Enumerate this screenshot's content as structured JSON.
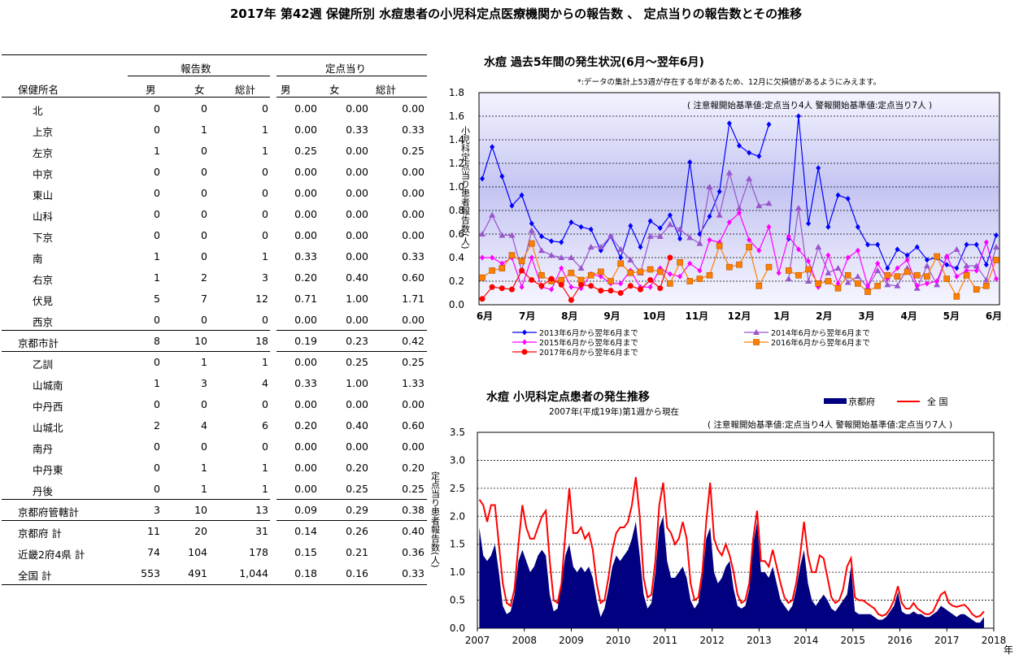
{
  "title": "2017年 第42週 保健所別 水痘患者の小児科定点医療機関からの報告数 、 定点当りの報告数とその推移",
  "table": {
    "group_headers": [
      "報告数",
      "定点当り"
    ],
    "columns": [
      "保健所名",
      "男",
      "女",
      "総計",
      "男",
      "女",
      "総計"
    ],
    "rows": [
      {
        "name": "北",
        "indent": true,
        "values": [
          "0",
          "0",
          "0",
          "0.00",
          "0.00",
          "0.00"
        ]
      },
      {
        "name": "上京",
        "indent": true,
        "values": [
          "0",
          "1",
          "1",
          "0.00",
          "0.33",
          "0.33"
        ]
      },
      {
        "name": "左京",
        "indent": true,
        "values": [
          "1",
          "0",
          "1",
          "0.25",
          "0.00",
          "0.25"
        ]
      },
      {
        "name": "中京",
        "indent": true,
        "values": [
          "0",
          "0",
          "0",
          "0.00",
          "0.00",
          "0.00"
        ]
      },
      {
        "name": "東山",
        "indent": true,
        "values": [
          "0",
          "0",
          "0",
          "0.00",
          "0.00",
          "0.00"
        ]
      },
      {
        "name": "山科",
        "indent": true,
        "values": [
          "0",
          "0",
          "0",
          "0.00",
          "0.00",
          "0.00"
        ]
      },
      {
        "name": "下京",
        "indent": true,
        "values": [
          "0",
          "0",
          "0",
          "0.00",
          "0.00",
          "0.00"
        ]
      },
      {
        "name": "南",
        "indent": true,
        "values": [
          "1",
          "0",
          "1",
          "0.33",
          "0.00",
          "0.33"
        ]
      },
      {
        "name": "右京",
        "indent": true,
        "values": [
          "1",
          "2",
          "3",
          "0.20",
          "0.40",
          "0.60"
        ]
      },
      {
        "name": "伏見",
        "indent": true,
        "values": [
          "5",
          "7",
          "12",
          "0.71",
          "1.00",
          "1.71"
        ]
      },
      {
        "name": "西京",
        "indent": true,
        "values": [
          "0",
          "0",
          "0",
          "0.00",
          "0.00",
          "0.00"
        ]
      },
      {
        "name": "京都市計",
        "indent": false,
        "rule": true,
        "values": [
          "8",
          "10",
          "18",
          "0.19",
          "0.23",
          "0.42"
        ]
      },
      {
        "name": "乙訓",
        "indent": true,
        "rule": true,
        "values": [
          "0",
          "1",
          "1",
          "0.00",
          "0.25",
          "0.25"
        ]
      },
      {
        "name": "山城南",
        "indent": true,
        "values": [
          "1",
          "3",
          "4",
          "0.33",
          "1.00",
          "1.33"
        ]
      },
      {
        "name": "中丹西",
        "indent": true,
        "values": [
          "0",
          "0",
          "0",
          "0.00",
          "0.00",
          "0.00"
        ]
      },
      {
        "name": "山城北",
        "indent": true,
        "values": [
          "2",
          "4",
          "6",
          "0.20",
          "0.40",
          "0.60"
        ]
      },
      {
        "name": "南丹",
        "indent": true,
        "values": [
          "0",
          "0",
          "0",
          "0.00",
          "0.00",
          "0.00"
        ]
      },
      {
        "name": "中丹東",
        "indent": true,
        "values": [
          "0",
          "1",
          "1",
          "0.00",
          "0.20",
          "0.20"
        ]
      },
      {
        "name": "丹後",
        "indent": true,
        "values": [
          "0",
          "1",
          "1",
          "0.00",
          "0.25",
          "0.25"
        ]
      },
      {
        "name": "京都府管轄計",
        "indent": false,
        "rule": true,
        "values": [
          "3",
          "10",
          "13",
          "0.09",
          "0.29",
          "0.38"
        ]
      },
      {
        "name": "京都府  計",
        "indent": false,
        "rule": true,
        "values": [
          "11",
          "20",
          "31",
          "0.14",
          "0.26",
          "0.40"
        ]
      },
      {
        "name": "近畿2府4県  計",
        "indent": false,
        "values": [
          "74",
          "104",
          "178",
          "0.15",
          "0.21",
          "0.36"
        ]
      },
      {
        "name": "全国  計",
        "indent": false,
        "values": [
          "553",
          "491",
          "1,044",
          "0.18",
          "0.16",
          "0.33"
        ]
      }
    ]
  },
  "chart_data": [
    {
      "type": "line",
      "title": "水痘  過去5年間の発生状況(6月～翌年6月)",
      "note": "*:データの集計上53週が存在する年があるため、12月に欠損値があるようにみえます。",
      "threshold_note": "( 注意報開始基準値:定点当り4人    警報開始基準値:定点当り7人 )",
      "ylabel": "小児科定点当り患者報告数(人)",
      "ylim": [
        0,
        1.8
      ],
      "yticks": [
        "0.0",
        "0.2",
        "0.4",
        "0.6",
        "0.8",
        "1.0",
        "1.2",
        "1.4",
        "1.6",
        "1.8"
      ],
      "xticks": [
        "6月",
        "7月",
        "8月",
        "9月",
        "10月",
        "11月",
        "12月",
        "1月",
        "2月",
        "3月",
        "4月",
        "5月",
        "6月"
      ],
      "grid": true,
      "legend": "bottom",
      "series": [
        {
          "name": "2013年6月から翌年6月まで",
          "color": "#0000ff",
          "marker": "diamond",
          "values": [
            1.07,
            1.34,
            1.09,
            0.84,
            0.93,
            0.69,
            0.58,
            0.54,
            0.53,
            0.7,
            0.66,
            0.64,
            0.46,
            0.58,
            0.4,
            0.67,
            0.49,
            0.71,
            0.65,
            0.76,
            0.56,
            1.21,
            0.6,
            0.75,
            0.96,
            1.54,
            1.35,
            1.29,
            1.26,
            1.53,
            null,
            0.56,
            1.6,
            0.69,
            1.16,
            0.66,
            0.93,
            0.9,
            0.66,
            0.51,
            0.51,
            0.31,
            0.47,
            0.42,
            0.49,
            0.38,
            0.4,
            0.34,
            0.31,
            0.51,
            0.51,
            0.34,
            0.59
          ]
        },
        {
          "name": "2014年6月から翌年6月まで",
          "color": "#9955cc",
          "marker": "triangle",
          "values": [
            0.6,
            0.76,
            0.59,
            0.59,
            0.29,
            0.63,
            0.46,
            0.42,
            0.4,
            0.4,
            0.31,
            0.49,
            0.49,
            0.58,
            0.47,
            0.38,
            0.27,
            0.58,
            0.58,
            0.68,
            0.64,
            0.57,
            0.52,
            1.0,
            0.76,
            1.12,
            0.82,
            1.07,
            0.84,
            0.86,
            null,
            0.22,
            0.82,
            0.2,
            0.49,
            0.27,
            0.31,
            0.19,
            0.24,
            0.15,
            0.29,
            0.17,
            0.16,
            0.31,
            0.14,
            0.33,
            0.17,
            0.41,
            0.47,
            0.33,
            0.33,
            0.21,
            0.49
          ]
        },
        {
          "name": "2015年6月から翌年6月まで",
          "color": "#ff00ff",
          "marker": "diamond",
          "values": [
            0.4,
            0.4,
            0.35,
            0.4,
            0.15,
            0.4,
            0.15,
            0.13,
            0.31,
            0.15,
            0.14,
            0.26,
            0.24,
            0.18,
            0.18,
            0.29,
            0.15,
            0.15,
            0.31,
            0.26,
            0.24,
            0.35,
            0.29,
            0.55,
            0.53,
            0.7,
            0.78,
            0.55,
            0.46,
            0.66,
            0.27,
            0.58,
            0.47,
            0.37,
            0.15,
            0.42,
            0.18,
            0.4,
            0.46,
            0.16,
            0.35,
            0.22,
            0.31,
            0.38,
            0.16,
            0.18,
            0.2,
            0.41,
            0.24,
            0.29,
            0.29,
            0.53,
            0.22
          ]
        },
        {
          "name": "2016年6月から翌年6月まで",
          "color": "#ff8000",
          "marker": "square",
          "values": [
            0.23,
            0.29,
            0.31,
            0.42,
            0.37,
            0.52,
            0.25,
            0.2,
            0.21,
            0.27,
            0.21,
            0.25,
            0.28,
            0.2,
            0.35,
            0.27,
            0.28,
            0.3,
            0.28,
            0.18,
            0.36,
            0.2,
            0.22,
            0.25,
            0.5,
            0.32,
            0.34,
            0.49,
            0.16,
            0.32,
            null,
            0.29,
            0.25,
            0.3,
            0.18,
            0.2,
            0.14,
            0.25,
            0.18,
            0.11,
            0.16,
            0.25,
            0.24,
            0.28,
            0.25,
            0.24,
            0.41,
            0.22,
            0.07,
            0.25,
            0.13,
            0.16,
            0.38
          ]
        },
        {
          "name": "2017年6月から翌年6月まで",
          "color": "#ff0000",
          "marker": "circle",
          "values": [
            0.05,
            0.15,
            0.14,
            0.13,
            0.29,
            0.21,
            0.16,
            0.22,
            0.17,
            0.04,
            0.17,
            0.16,
            0.12,
            0.12,
            0.1,
            0.16,
            0.13,
            0.21,
            0.14,
            0.4
          ]
        }
      ]
    },
    {
      "type": "area",
      "title": "水痘  小児科定点患者の発生推移",
      "subtitle": "2007年(平成19年)第1週から現在",
      "threshold_note": "( 注意報開始基準値:定点当り4人    警報開始基準値:定点当り7人 )",
      "ylabel": "定点当り患者報告数(人)",
      "xlabel_unit": "年",
      "ylim": [
        0,
        3.5
      ],
      "yticks": [
        "0.0",
        "0.5",
        "1.0",
        "1.5",
        "2.0",
        "2.5",
        "3.0",
        "3.5"
      ],
      "xticks": [
        "2007",
        "2008",
        "2009",
        "2010",
        "2011",
        "2012",
        "2013",
        "2014",
        "2015",
        "2016",
        "2017",
        "2018"
      ],
      "grid": true,
      "legend": "top-right",
      "series": [
        {
          "name": "京都府",
          "color": "#000080",
          "style": "area",
          "monthly": {
            "2007": [
              1.8,
              1.3,
              1.2,
              1.3,
              1.5,
              1.0,
              0.4,
              0.25,
              0.3,
              0.6,
              1.2,
              1.4
            ],
            "2008": [
              1.2,
              1.0,
              1.1,
              1.3,
              1.4,
              1.3,
              0.6,
              0.3,
              0.35,
              0.8,
              1.3,
              1.5
            ],
            "2009": [
              1.1,
              1.0,
              1.1,
              1.0,
              1.1,
              0.9,
              0.5,
              0.2,
              0.35,
              0.7,
              1.1,
              1.3
            ],
            "2010": [
              1.2,
              1.3,
              1.4,
              1.6,
              1.9,
              1.3,
              0.6,
              0.35,
              0.45,
              1.0,
              1.8,
              2.0
            ],
            "2011": [
              1.2,
              0.9,
              0.9,
              1.0,
              1.1,
              0.9,
              0.5,
              0.35,
              0.45,
              0.9,
              1.6,
              1.8
            ],
            "2012": [
              1.0,
              0.8,
              0.9,
              1.1,
              1.2,
              0.7,
              0.4,
              0.35,
              0.4,
              0.7,
              1.5,
              1.9
            ],
            "2013": [
              1.0,
              1.0,
              0.9,
              1.1,
              0.8,
              0.5,
              0.4,
              0.3,
              0.4,
              0.7,
              1.1,
              1.4
            ],
            "2014": [
              0.8,
              0.5,
              0.4,
              0.5,
              0.6,
              0.5,
              0.35,
              0.3,
              0.4,
              0.5,
              0.6,
              1.1
            ],
            "2015": [
              0.3,
              0.25,
              0.25,
              0.25,
              0.25,
              0.2,
              0.15,
              0.15,
              0.2,
              0.3,
              0.4,
              0.65
            ],
            "2016": [
              0.3,
              0.25,
              0.25,
              0.3,
              0.25,
              0.25,
              0.2,
              0.2,
              0.25,
              0.3,
              0.4,
              0.35
            ],
            "2017": [
              0.3,
              0.25,
              0.2,
              0.25,
              0.25,
              0.2,
              0.15,
              0.1,
              0.1,
              0.2
            ]
          }
        },
        {
          "name": "全  国",
          "color": "#ff0000",
          "style": "line",
          "monthly": {
            "2007": [
              2.3,
              2.2,
              1.9,
              2.2,
              2.2,
              1.5,
              0.8,
              0.45,
              0.4,
              0.7,
              1.5,
              2.2
            ],
            "2008": [
              1.8,
              1.6,
              1.6,
              1.8,
              2.0,
              2.1,
              1.2,
              0.5,
              0.45,
              0.8,
              1.7,
              2.5
            ],
            "2009": [
              1.7,
              1.7,
              1.8,
              1.6,
              1.7,
              1.4,
              0.8,
              0.45,
              0.5,
              0.9,
              1.4,
              1.7
            ],
            "2010": [
              1.8,
              1.8,
              1.9,
              2.2,
              2.7,
              2.0,
              0.9,
              0.55,
              0.6,
              1.2,
              2.2,
              2.6
            ],
            "2011": [
              1.8,
              1.7,
              1.5,
              1.6,
              1.9,
              1.6,
              0.8,
              0.5,
              0.55,
              1.0,
              1.9,
              2.6
            ],
            "2012": [
              1.6,
              1.4,
              1.3,
              1.5,
              1.3,
              1.0,
              0.6,
              0.45,
              0.5,
              0.8,
              1.6,
              2.1
            ],
            "2013": [
              1.2,
              1.2,
              1.1,
              1.4,
              1.1,
              0.8,
              0.55,
              0.45,
              0.5,
              0.8,
              1.3,
              1.9
            ],
            "2014": [
              1.3,
              1.0,
              1.0,
              1.3,
              1.25,
              0.9,
              0.55,
              0.45,
              0.5,
              0.7,
              1.1,
              1.25
            ],
            "2015": [
              0.55,
              0.5,
              0.5,
              0.45,
              0.4,
              0.35,
              0.25,
              0.22,
              0.25,
              0.35,
              0.5,
              0.75
            ],
            "2016": [
              0.45,
              0.35,
              0.35,
              0.45,
              0.35,
              0.3,
              0.25,
              0.25,
              0.3,
              0.45,
              0.6,
              0.65
            ],
            "2017": [
              0.45,
              0.4,
              0.38,
              0.4,
              0.42,
              0.35,
              0.25,
              0.2,
              0.22,
              0.3
            ]
          }
        }
      ]
    }
  ]
}
